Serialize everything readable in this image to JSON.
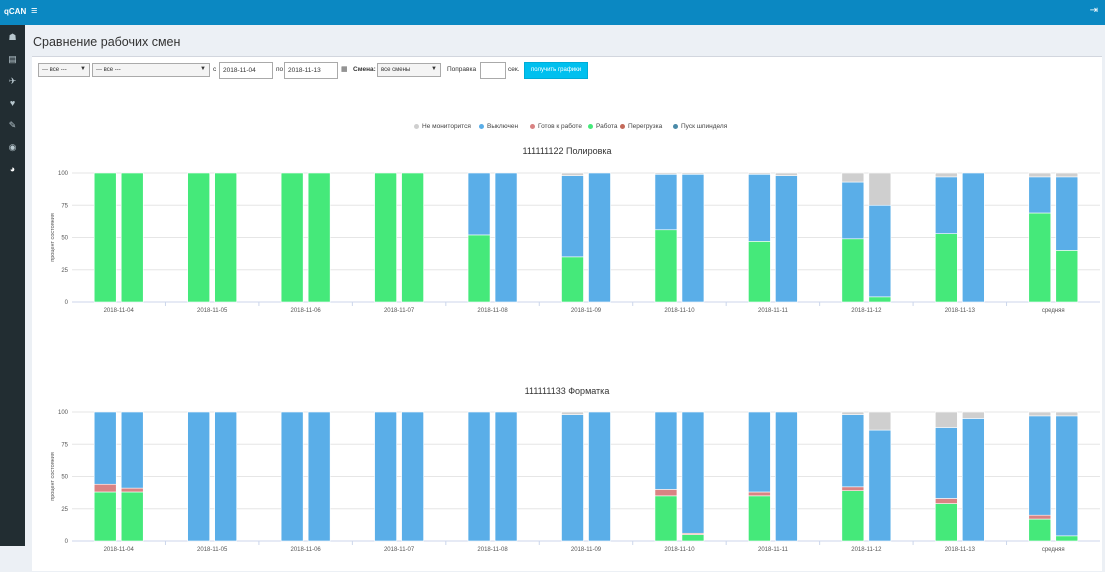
{
  "app": {
    "logo": "qCAN",
    "menu_icon": "hamburger-icon",
    "logout_icon": "sign-out-icon"
  },
  "sidebar": {
    "items": [
      {
        "name": "users",
        "icon": "users-icon",
        "glyph": "☗"
      },
      {
        "name": "reports",
        "icon": "file-icon",
        "glyph": "▤"
      },
      {
        "name": "tools",
        "icon": "wrench-icon",
        "glyph": "✈"
      },
      {
        "name": "health",
        "icon": "heartbeat-icon",
        "glyph": "♥"
      },
      {
        "name": "settings",
        "icon": "wrench-icon",
        "glyph": "✎"
      },
      {
        "name": "monitor",
        "icon": "eye-icon",
        "glyph": "◉"
      },
      {
        "name": "charts",
        "icon": "pie-chart-icon",
        "glyph": "◕"
      }
    ],
    "active": 6
  },
  "page": {
    "title": "Сравнение рабочих смен"
  },
  "filters": {
    "group_select": "--- все ---",
    "machine_select": "--- все ---",
    "from_label": "с",
    "date_from": "2018-11-04",
    "to_label": "по",
    "date_to": "2018-11-13",
    "shift_label": "Смена:",
    "shift_select": "все смены",
    "correction_label": "Поправка",
    "correction_value": "",
    "seconds_label": "сек.",
    "submit_label": "получить графики"
  },
  "colors": {
    "not_monitored": "#cfcfcf",
    "off": "#5aaee8",
    "ready": "#d98383",
    "work": "#45e97a",
    "overload": "#c46a5a",
    "spindle_start": "#4a8aa8"
  },
  "legend": [
    {
      "label": "Не мониторится",
      "color": "#cfcfcf"
    },
    {
      "label": "Выключен",
      "color": "#5aaee8"
    },
    {
      "label": "Готов к работе",
      "color": "#d98383"
    },
    {
      "label": "Работа",
      "color": "#45e97a"
    },
    {
      "label": "Перегрузка",
      "color": "#c46a5a"
    },
    {
      "label": "Пуск шпинделя",
      "color": "#4a8aa8"
    }
  ],
  "chart_data": [
    {
      "type": "bar",
      "title": "111111122 Полировка",
      "ylabel": "процент состояния",
      "ylim": [
        0,
        100
      ],
      "yticks": [
        0,
        25,
        50,
        75,
        100
      ],
      "categories": [
        "2018-11-04",
        "2018-11-05",
        "2018-11-06",
        "2018-11-07",
        "2018-11-08",
        "2018-11-09",
        "2018-11-10",
        "2018-11-11",
        "2018-11-12",
        "2018-11-13",
        "средняя"
      ],
      "stack_order": [
        "Работа",
        "Готов к работе",
        "Выключен",
        "Не мониторится"
      ],
      "bars": [
        [
          [
            100,
            0,
            0,
            0
          ],
          [
            100,
            0,
            0,
            0
          ]
        ],
        [
          [
            100,
            0,
            0,
            0
          ],
          [
            100,
            0,
            0,
            0
          ]
        ],
        [
          [
            100,
            0,
            0,
            0
          ],
          [
            100,
            0,
            0,
            0
          ]
        ],
        [
          [
            100,
            0,
            0,
            0
          ],
          [
            100,
            0,
            0,
            0
          ]
        ],
        [
          [
            52,
            0,
            48,
            0
          ],
          [
            0,
            0,
            100,
            0
          ]
        ],
        [
          [
            35,
            0,
            63,
            2
          ],
          [
            0,
            0,
            100,
            0
          ]
        ],
        [
          [
            56,
            0,
            43,
            1
          ],
          [
            0,
            0,
            99,
            1
          ]
        ],
        [
          [
            47,
            0,
            52,
            1
          ],
          [
            0,
            0,
            98,
            2
          ]
        ],
        [
          [
            49,
            0,
            44,
            7
          ],
          [
            4,
            0,
            71,
            25
          ]
        ],
        [
          [
            53,
            0,
            44,
            3
          ],
          [
            0,
            0,
            100,
            0
          ]
        ],
        [
          [
            69,
            0,
            28,
            3
          ],
          [
            40,
            0,
            57,
            3
          ]
        ]
      ]
    },
    {
      "type": "bar",
      "title": "111111133 Форматка",
      "ylabel": "процент состояния",
      "ylim": [
        0,
        100
      ],
      "yticks": [
        0,
        25,
        50,
        75,
        100
      ],
      "categories": [
        "2018-11-04",
        "2018-11-05",
        "2018-11-06",
        "2018-11-07",
        "2018-11-08",
        "2018-11-09",
        "2018-11-10",
        "2018-11-11",
        "2018-11-12",
        "2018-11-13",
        "средняя"
      ],
      "stack_order": [
        "Работа",
        "Готов к работе",
        "Выключен",
        "Не мониторится"
      ],
      "bars": [
        [
          [
            38,
            6,
            56,
            0
          ],
          [
            38,
            3,
            59,
            0
          ]
        ],
        [
          [
            0,
            0,
            100,
            0
          ],
          [
            0,
            0,
            100,
            0
          ]
        ],
        [
          [
            0,
            0,
            100,
            0
          ],
          [
            0,
            0,
            100,
            0
          ]
        ],
        [
          [
            0,
            0,
            100,
            0
          ],
          [
            0,
            0,
            100,
            0
          ]
        ],
        [
          [
            0,
            0,
            100,
            0
          ],
          [
            0,
            0,
            100,
            0
          ]
        ],
        [
          [
            0,
            0,
            98,
            2
          ],
          [
            0,
            0,
            100,
            0
          ]
        ],
        [
          [
            35,
            5,
            60,
            0
          ],
          [
            5,
            1,
            94,
            0
          ]
        ],
        [
          [
            35,
            3,
            62,
            0
          ],
          [
            0,
            0,
            100,
            0
          ]
        ],
        [
          [
            39,
            3,
            56,
            2
          ],
          [
            0,
            0,
            86,
            14
          ]
        ],
        [
          [
            29,
            4,
            55,
            12
          ],
          [
            0,
            0,
            95,
            5
          ]
        ],
        [
          [
            17,
            3,
            77,
            3
          ],
          [
            4,
            0,
            93,
            3
          ]
        ]
      ]
    }
  ]
}
